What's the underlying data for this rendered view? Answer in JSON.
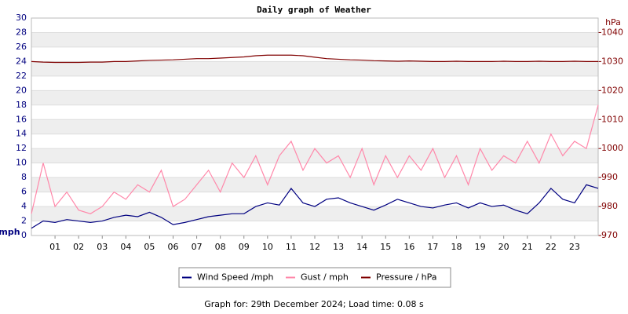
{
  "chart_data": {
    "type": "line",
    "title": "Daily graph of Weather",
    "caption": "Graph for: 29th December 2024; Load time: 0.08 s",
    "y_label": "mph",
    "y2_label": "hPa",
    "x": [
      0,
      0.5,
      1,
      1.5,
      2,
      2.5,
      3,
      3.5,
      4,
      4.5,
      5,
      5.5,
      6,
      6.5,
      7,
      7.5,
      8,
      8.5,
      9,
      9.5,
      10,
      10.5,
      11,
      11.5,
      12,
      12.5,
      13,
      13.5,
      14,
      14.5,
      15,
      15.5,
      16,
      16.5,
      17,
      17.5,
      18,
      18.5,
      19,
      19.5,
      20,
      20.5,
      21,
      21.5,
      22,
      22.5,
      23,
      23.5,
      24
    ],
    "xlim": [
      0,
      24
    ],
    "xticks": [
      {
        "value": 1,
        "label": "01"
      },
      {
        "value": 2,
        "label": "02"
      },
      {
        "value": 3,
        "label": "03"
      },
      {
        "value": 4,
        "label": "04"
      },
      {
        "value": 5,
        "label": "05"
      },
      {
        "value": 6,
        "label": "06"
      },
      {
        "value": 7,
        "label": "07"
      },
      {
        "value": 8,
        "label": "08"
      },
      {
        "value": 9,
        "label": "09"
      },
      {
        "value": 10,
        "label": "10"
      },
      {
        "value": 11,
        "label": "11"
      },
      {
        "value": 12,
        "label": "12"
      },
      {
        "value": 13,
        "label": "13"
      },
      {
        "value": 14,
        "label": "14"
      },
      {
        "value": 15,
        "label": "15"
      },
      {
        "value": 16,
        "label": "16"
      },
      {
        "value": 17,
        "label": "17"
      },
      {
        "value": 18,
        "label": "18"
      },
      {
        "value": 19,
        "label": "19"
      },
      {
        "value": 20,
        "label": "20"
      },
      {
        "value": 21,
        "label": "21"
      },
      {
        "value": 22,
        "label": "22"
      },
      {
        "value": 23,
        "label": "23"
      }
    ],
    "ylim": [
      0,
      30
    ],
    "yticks": [
      0,
      2,
      4,
      6,
      8,
      10,
      12,
      14,
      16,
      18,
      20,
      22,
      24,
      26,
      28,
      30
    ],
    "y2lim": [
      970,
      1045
    ],
    "y2ticks": [
      970,
      980,
      990,
      1000,
      1010,
      1020,
      1030,
      1040
    ],
    "series": [
      {
        "name": "Wind Speed /mph",
        "color": "#000080",
        "values": [
          1.0,
          2.0,
          1.8,
          2.2,
          2.0,
          1.8,
          2.0,
          2.5,
          2.8,
          2.6,
          3.2,
          2.5,
          1.5,
          1.8,
          2.2,
          2.6,
          2.8,
          3.0,
          3.0,
          4.0,
          4.5,
          4.2,
          6.5,
          4.5,
          4.0,
          5.0,
          5.2,
          4.5,
          4.0,
          3.5,
          4.2,
          5.0,
          4.5,
          4.0,
          3.8,
          4.2,
          4.5,
          3.8,
          4.5,
          4.0,
          4.2,
          3.5,
          3.0,
          4.5,
          6.5,
          5.0,
          4.5,
          7.0,
          6.5
        ]
      },
      {
        "name": "Gust / mph",
        "color": "#ff88aa",
        "values": [
          3,
          10,
          4,
          6,
          3.5,
          3,
          4,
          6,
          5,
          7,
          6,
          9,
          4,
          5,
          7,
          9,
          6,
          10,
          8,
          11,
          7,
          11,
          13,
          9,
          12,
          10,
          11,
          8,
          12,
          7,
          11,
          8,
          11,
          9,
          12,
          8,
          11,
          7,
          12,
          9,
          11,
          10,
          13,
          10,
          14,
          11,
          13,
          12,
          18
        ]
      },
      {
        "name": "Pressure / hPa",
        "color": "#800000",
        "axis": "y2",
        "values": [
          1030,
          1029.8,
          1029.7,
          1029.7,
          1029.7,
          1029.8,
          1029.8,
          1030,
          1030,
          1030.2,
          1030.4,
          1030.5,
          1030.6,
          1030.8,
          1031,
          1031,
          1031.2,
          1031.4,
          1031.6,
          1032,
          1032.2,
          1032.2,
          1032.2,
          1032,
          1031.5,
          1031,
          1030.8,
          1030.6,
          1030.5,
          1030.3,
          1030.2,
          1030.1,
          1030.2,
          1030.1,
          1030,
          1030,
          1030.1,
          1030,
          1030,
          1030,
          1030.1,
          1030,
          1030,
          1030.1,
          1030,
          1030,
          1030.1,
          1030,
          1030
        ]
      }
    ]
  }
}
